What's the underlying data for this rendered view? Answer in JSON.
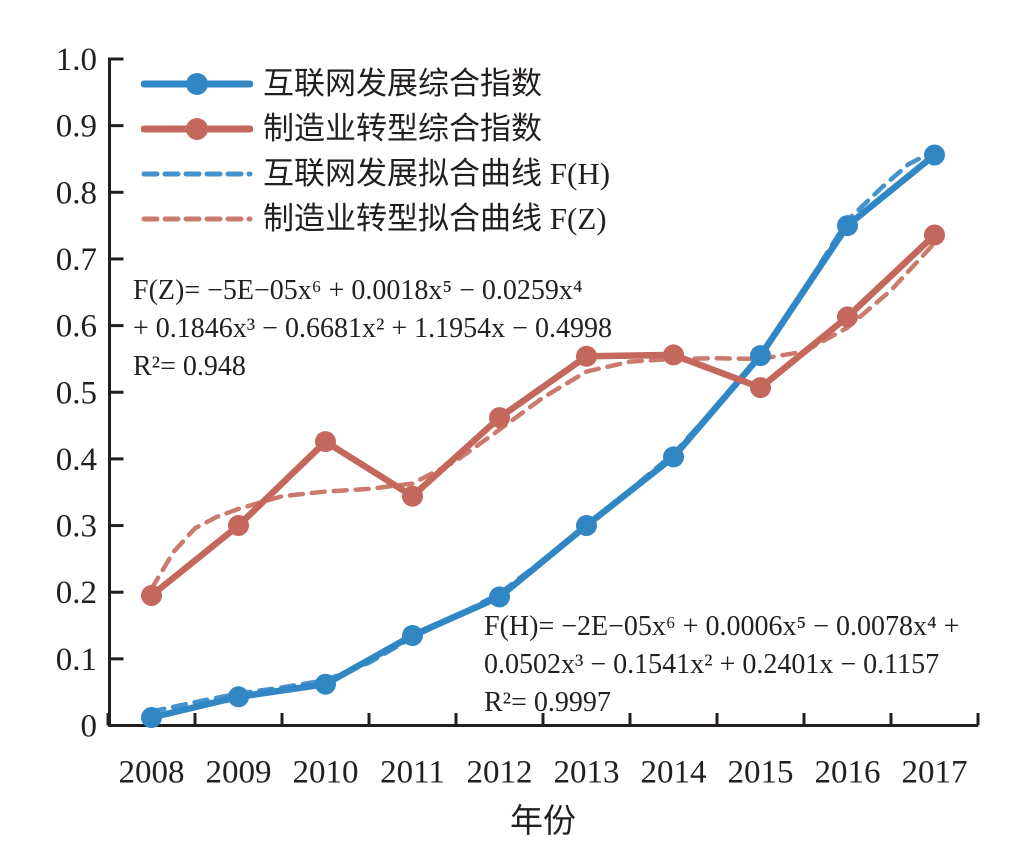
{
  "chart_data": {
    "type": "line",
    "title": "",
    "xlabel": "年份",
    "ylabel": "",
    "x_categories": [
      "2008",
      "2009",
      "2010",
      "2011",
      "2012",
      "2013",
      "2014",
      "2015",
      "2016",
      "2017"
    ],
    "ylim": [
      0,
      1.0
    ],
    "ytick_values": [
      0,
      0.1,
      0.2,
      0.3,
      0.4,
      0.5,
      0.6,
      0.7,
      0.8,
      0.9,
      1.0
    ],
    "ytick_labels": [
      "0",
      "0.1",
      "0.2",
      "0.3",
      "0.4",
      "0.5",
      "0.6",
      "0.7",
      "0.8",
      "0.9",
      "1.0"
    ],
    "grid": "off",
    "legend_position": "top-left-inside",
    "axis_color": "#231f1f",
    "series": [
      {
        "id": "internet-index",
        "name": "互联网发展综合指数",
        "style": "solid-marker",
        "color": "#3186c4",
        "values": [
          0.012,
          0.043,
          0.062,
          0.135,
          0.193,
          0.3,
          0.403,
          0.555,
          0.75,
          0.856
        ]
      },
      {
        "id": "manufacturing-index",
        "name": "制造业转型综合指数",
        "style": "solid-marker",
        "color": "#c4675c",
        "values": [
          0.195,
          0.3,
          0.426,
          0.344,
          0.462,
          0.554,
          0.556,
          0.507,
          0.613,
          0.736
        ]
      },
      {
        "id": "internet-fit",
        "name": "互联网发展拟合曲线 F(H)",
        "style": "dashed",
        "color": "#4691cb",
        "fit_x": [
          0,
          0.5,
          1,
          1.5,
          2,
          2.5,
          3,
          3.5,
          4,
          4.5,
          5,
          5.5,
          6,
          6.5,
          7,
          7.5,
          8,
          8.4,
          8.7,
          9
        ],
        "fit_y": [
          0.021,
          0.035,
          0.048,
          0.057,
          0.068,
          0.094,
          0.132,
          0.164,
          0.198,
          0.248,
          0.302,
          0.353,
          0.408,
          0.48,
          0.557,
          0.654,
          0.758,
          0.808,
          0.842,
          0.862
        ]
      },
      {
        "id": "manufacturing-fit",
        "name": "制造业转型拟合曲线 F(Z)",
        "style": "dashed",
        "color": "#ca7b6d",
        "fit_x": [
          0,
          0.25,
          0.5,
          0.75,
          1,
          1.5,
          2,
          2.5,
          3,
          3.5,
          4,
          4.5,
          5,
          5.5,
          6,
          6.5,
          7,
          7.5,
          8,
          8.5,
          9
        ],
        "fit_y": [
          0.205,
          0.26,
          0.296,
          0.313,
          0.325,
          0.344,
          0.351,
          0.355,
          0.363,
          0.397,
          0.444,
          0.492,
          0.531,
          0.546,
          0.55,
          0.551,
          0.55,
          0.561,
          0.597,
          0.653,
          0.724
        ]
      }
    ],
    "annotations": [
      {
        "id": "fz-equation",
        "lines": [
          "F(Z)= −5E−05x⁶ + 0.0018x⁵ − 0.0259x⁴",
          "+ 0.1846x³ − 0.6681x² + 1.1954x − 0.4998",
          "R²= 0.948"
        ]
      },
      {
        "id": "fh-equation",
        "lines": [
          "F(H)= −2E−05x⁶ + 0.0006x⁵ − 0.0078x⁴ +",
          "0.0502x³ − 0.1541x² + 0.2401x − 0.1157",
          "R²= 0.9997"
        ]
      }
    ]
  }
}
